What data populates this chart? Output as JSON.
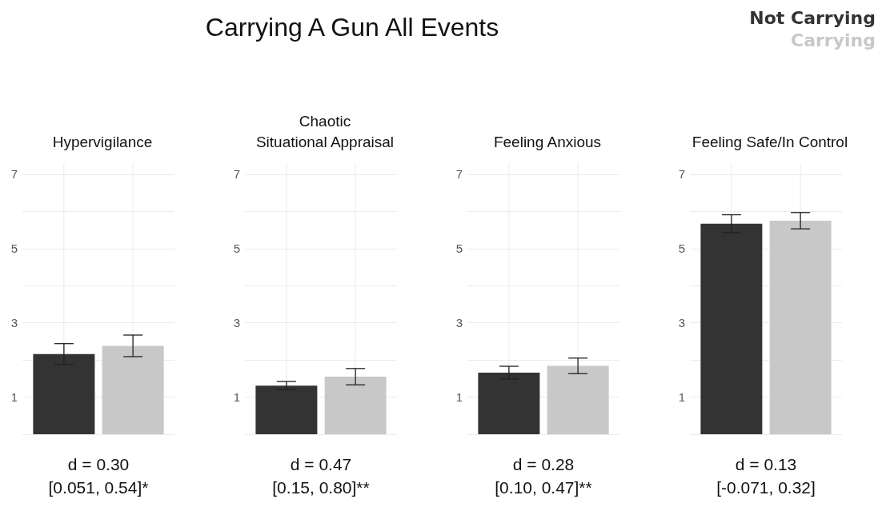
{
  "chart_data": [
    {
      "type": "bar",
      "subtitle": "Hypervigilance",
      "categories": [
        null
      ],
      "ylim": [
        0,
        7.3
      ],
      "yticks": [
        {
          "value": 0,
          "label": null
        },
        1,
        {
          "value": 2,
          "label": null
        },
        3,
        {
          "value": 4,
          "label": null
        },
        5,
        {
          "value": 6,
          "label": null
        },
        7
      ],
      "grid": true,
      "series": [
        {
          "color": "#333333",
          "values": [
            2.16
          ],
          "errors": [
            0.28
          ]
        },
        {
          "color": "#c8c8c8",
          "values": [
            2.38
          ],
          "errors": [
            0.29
          ]
        }
      ],
      "annotations": [
        "d = 0.30",
        "[0.051, 0.54]*"
      ]
    },
    {
      "type": "bar",
      "title": "Carrying A Gun All Events",
      "subtitle": "Chaotic\nSituational Appraisal",
      "categories": [
        null
      ],
      "ylim": [
        0,
        7.3
      ],
      "yticks": [
        {
          "value": 0,
          "label": null
        },
        1,
        {
          "value": 2,
          "label": null
        },
        3,
        {
          "value": 4,
          "label": null
        },
        5,
        {
          "value": 6,
          "label": null
        },
        7
      ],
      "grid": true,
      "series": [
        {
          "color": "#333333",
          "values": [
            1.31
          ],
          "errors": [
            0.11
          ]
        },
        {
          "color": "#c8c8c8",
          "values": [
            1.55
          ],
          "errors": [
            0.22
          ]
        }
      ],
      "annotations": [
        "d = 0.47",
        "[0.15, 0.80]**"
      ]
    },
    {
      "type": "bar",
      "subtitle": "Feeling Anxious",
      "categories": [
        null
      ],
      "ylim": [
        0,
        7.3
      ],
      "yticks": [
        {
          "value": 0,
          "label": null
        },
        1,
        {
          "value": 2,
          "label": null
        },
        3,
        {
          "value": 4,
          "label": null
        },
        5,
        {
          "value": 6,
          "label": null
        },
        7
      ],
      "grid": true,
      "series": [
        {
          "color": "#333333",
          "values": [
            1.66
          ],
          "errors": [
            0.17
          ]
        },
        {
          "color": "#c8c8c8",
          "values": [
            1.84
          ],
          "errors": [
            0.21
          ]
        }
      ],
      "annotations": [
        "d = 0.28",
        "[0.10, 0.47]**"
      ]
    },
    {
      "type": "bar",
      "subtitle": "Feeling Safe/In Control",
      "categories": [
        null
      ],
      "ylim": [
        0,
        7.3
      ],
      "yticks": [
        {
          "value": 0,
          "label": null
        },
        1,
        {
          "value": 2,
          "label": null
        },
        3,
        {
          "value": 4,
          "label": null
        },
        5,
        {
          "value": 6,
          "label": null
        },
        7
      ],
      "grid": true,
      "legend": "top right",
      "series": [
        {
          "name": "Not Carrying",
          "color": "#333333",
          "values": [
            5.67
          ],
          "errors": [
            0.24
          ]
        },
        {
          "name": "Carrying",
          "color": "#c8c8c8",
          "values": [
            5.75
          ],
          "errors": [
            0.22
          ]
        }
      ],
      "annotations": [
        "d = 0.13",
        "[-0.071, 0.32]"
      ]
    }
  ]
}
